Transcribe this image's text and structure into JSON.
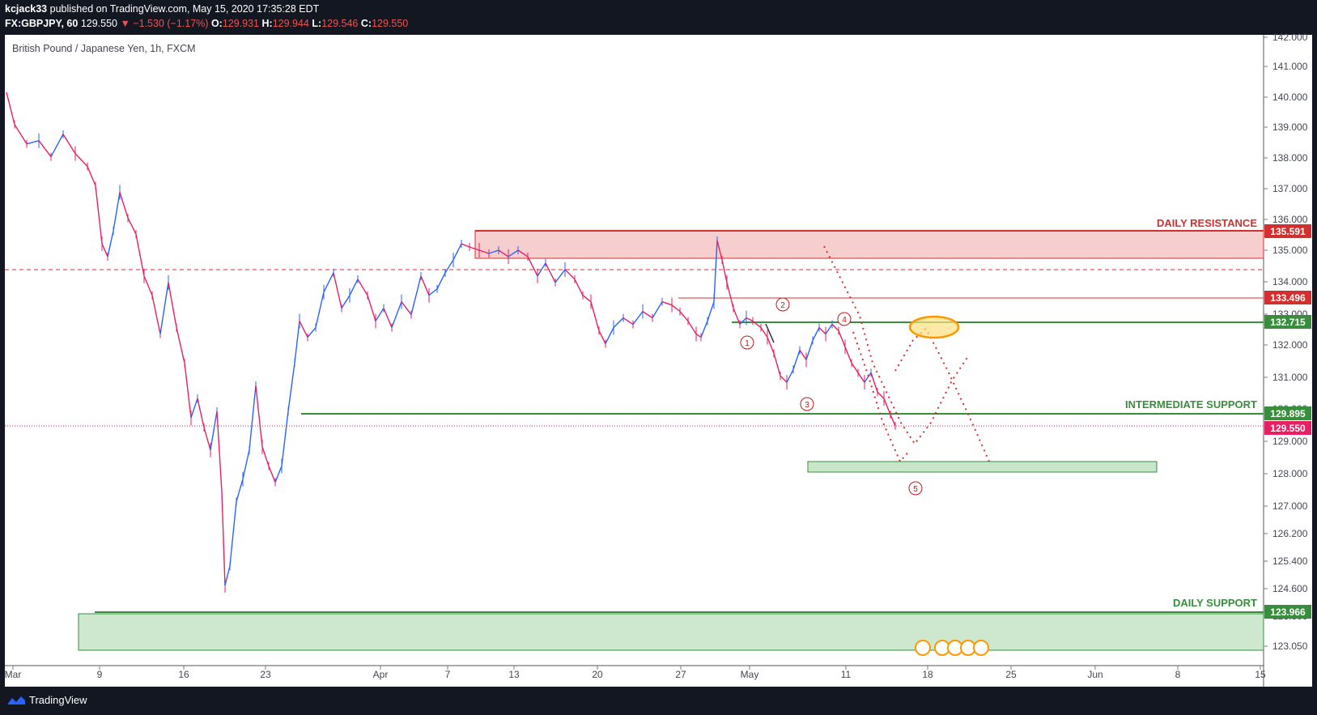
{
  "header": {
    "publisher": "kcjack33",
    "published_text": "published on TradingView.com, May 15, 2020 17:35:28 EDT",
    "symbol": "FX:GBPJPY, 60",
    "last": "129.550",
    "change": "▼ −1.530 (−1.17%)",
    "o_label": "O:",
    "o_val": "129.931",
    "h_label": "H:",
    "h_val": "129.944",
    "l_label": "L:",
    "l_val": "129.546",
    "c_label": "C:",
    "c_val": "129.550"
  },
  "chart_title": "British Pound / Japanese Yen, 1h, FXCM",
  "footer": {
    "brand": "TradingView"
  },
  "colors": {
    "resistance": "#d32f2f",
    "support": "#388e3c",
    "price": "#e91e63",
    "candle_up": "#2962ff",
    "candle_down": "#e91e63",
    "highlight": "#ff9800"
  },
  "annotations": {
    "daily_resistance": "DAILY RESISTANCE",
    "intermediate_support": "INTERMEDIATE SUPPORT",
    "daily_support": "DAILY SUPPORT",
    "wave_labels": [
      "1",
      "2",
      "3",
      "4",
      "5"
    ]
  },
  "price_labels": {
    "resistance": "135.591",
    "level_133": "133.496",
    "level_132": "132.715",
    "inter_support": "129.895",
    "current": "129.550",
    "daily_support": "123.966"
  },
  "chart_data": {
    "type": "candlestick",
    "title": "British Pound / Japanese Yen, 1h, FXCM",
    "y_axis_ticks": [
      "142.000",
      "141.000",
      "140.000",
      "139.000",
      "138.000",
      "137.000",
      "136.000",
      "135.000",
      "134.000",
      "133.000",
      "132.000",
      "131.000",
      "130.000",
      "129.000",
      "128.000",
      "127.000",
      "126.200",
      "125.400",
      "124.600",
      "123.800",
      "123.050"
    ],
    "x_axis_ticks": [
      "Mar",
      "9",
      "16",
      "23",
      "Apr",
      "7",
      "13",
      "20",
      "27",
      "May",
      "11",
      "18",
      "25",
      "Jun",
      "8",
      "15"
    ],
    "ylim": [
      122.6,
      142.0
    ],
    "levels": [
      {
        "name": "DAILY RESISTANCE",
        "value": 135.591
      },
      {
        "name": "resistance zone bottom",
        "value": 134.75
      },
      {
        "name": "dashed level",
        "value": 134.4
      },
      {
        "value": 133.496
      },
      {
        "value": 132.715
      },
      {
        "name": "INTERMEDIATE SUPPORT",
        "value": 129.895
      },
      {
        "name": "current price",
        "value": 129.55
      },
      {
        "name": "target zone",
        "value": [
          128.2,
          128.5
        ]
      },
      {
        "name": "DAILY SUPPORT",
        "value": 123.966
      },
      {
        "name": "daily support zone bottom",
        "value": 122.9
      }
    ],
    "price_path_points": [
      [
        0,
        139.9
      ],
      [
        10,
        138.9
      ],
      [
        25,
        138.3
      ],
      [
        40,
        138.4
      ],
      [
        55,
        137.9
      ],
      [
        70,
        138.6
      ],
      [
        85,
        138.0
      ],
      [
        100,
        137.6
      ],
      [
        110,
        137.0
      ],
      [
        118,
        135.2
      ],
      [
        125,
        134.8
      ],
      [
        132,
        135.6
      ],
      [
        140,
        136.8
      ],
      [
        150,
        136.0
      ],
      [
        160,
        135.5
      ],
      [
        170,
        134.2
      ],
      [
        180,
        133.6
      ],
      [
        190,
        132.4
      ],
      [
        200,
        134.0
      ],
      [
        210,
        132.6
      ],
      [
        220,
        131.5
      ],
      [
        228,
        129.8
      ],
      [
        236,
        130.4
      ],
      [
        244,
        129.5
      ],
      [
        252,
        128.8
      ],
      [
        260,
        130.0
      ],
      [
        266,
        127.5
      ],
      [
        270,
        124.6
      ],
      [
        276,
        125.2
      ],
      [
        284,
        127.2
      ],
      [
        292,
        127.9
      ],
      [
        300,
        128.8
      ],
      [
        308,
        130.8
      ],
      [
        316,
        128.9
      ],
      [
        324,
        128.3
      ],
      [
        332,
        127.8
      ],
      [
        340,
        128.3
      ],
      [
        348,
        130.0
      ],
      [
        356,
        131.5
      ],
      [
        362,
        132.8
      ],
      [
        372,
        132.3
      ],
      [
        382,
        132.6
      ],
      [
        392,
        133.7
      ],
      [
        404,
        134.3
      ],
      [
        414,
        133.2
      ],
      [
        424,
        133.6
      ],
      [
        434,
        134.1
      ],
      [
        446,
        133.6
      ],
      [
        456,
        132.8
      ],
      [
        466,
        133.2
      ],
      [
        476,
        132.6
      ],
      [
        488,
        133.4
      ],
      [
        500,
        133.0
      ],
      [
        512,
        134.2
      ],
      [
        522,
        133.6
      ],
      [
        532,
        133.8
      ],
      [
        542,
        134.3
      ],
      [
        552,
        134.7
      ],
      [
        562,
        135.2
      ],
      [
        572,
        135.1
      ],
      [
        584,
        135.0
      ],
      [
        596,
        134.9
      ],
      [
        608,
        135.0
      ],
      [
        620,
        134.8
      ],
      [
        632,
        135.0
      ],
      [
        644,
        134.8
      ],
      [
        656,
        134.2
      ],
      [
        666,
        134.6
      ],
      [
        678,
        134.0
      ],
      [
        690,
        134.4
      ],
      [
        702,
        134.1
      ],
      [
        712,
        133.6
      ],
      [
        722,
        133.4
      ],
      [
        732,
        132.5
      ],
      [
        740,
        132.1
      ],
      [
        750,
        132.6
      ],
      [
        762,
        132.9
      ],
      [
        774,
        132.7
      ],
      [
        786,
        133.1
      ],
      [
        798,
        132.9
      ],
      [
        810,
        133.4
      ],
      [
        822,
        133.3
      ],
      [
        832,
        133.1
      ],
      [
        842,
        132.8
      ],
      [
        852,
        132.4
      ],
      [
        858,
        132.3
      ],
      [
        866,
        132.8
      ],
      [
        874,
        133.4
      ],
      [
        878,
        135.3
      ],
      [
        884,
        134.7
      ],
      [
        890,
        134.0
      ],
      [
        898,
        133.2
      ],
      [
        906,
        132.7
      ],
      [
        914,
        132.9
      ],
      [
        922,
        132.8
      ],
      [
        932,
        132.6
      ],
      [
        940,
        132.3
      ],
      [
        948,
        131.8
      ],
      [
        956,
        131.1
      ],
      [
        964,
        130.9
      ],
      [
        972,
        131.3
      ],
      [
        980,
        131.9
      ],
      [
        988,
        131.6
      ],
      [
        996,
        132.2
      ],
      [
        1004,
        132.6
      ],
      [
        1012,
        132.4
      ],
      [
        1020,
        132.7
      ],
      [
        1028,
        132.5
      ],
      [
        1036,
        132.0
      ],
      [
        1044,
        131.5
      ],
      [
        1052,
        131.2
      ],
      [
        1060,
        130.9
      ],
      [
        1068,
        131.2
      ],
      [
        1076,
        130.6
      ],
      [
        1084,
        130.4
      ],
      [
        1092,
        129.9
      ],
      [
        1098,
        129.55
      ]
    ]
  }
}
